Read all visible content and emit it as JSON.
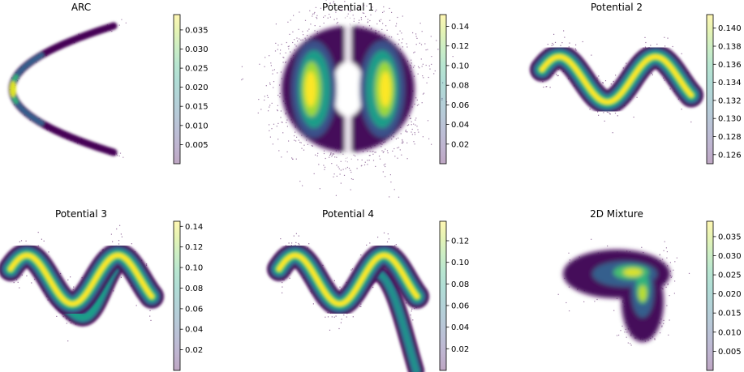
{
  "chart_data": [
    {
      "type": "heatmap",
      "title": "ARC",
      "shape": "arc",
      "colorbar": {
        "range": [
          0.0,
          0.039
        ],
        "ticks": [
          0.005,
          0.01,
          0.015,
          0.02,
          0.025,
          0.03,
          0.035
        ],
        "tick_labels": [
          "0.005",
          "0.010",
          "0.015",
          "0.020",
          "0.025",
          "0.030",
          "0.035"
        ]
      },
      "axes_visible": false
    },
    {
      "type": "heatmap",
      "title": "Potential 1",
      "shape": "potential1",
      "colorbar": {
        "range": [
          0.0,
          0.152
        ],
        "ticks": [
          0.02,
          0.04,
          0.06,
          0.08,
          0.1,
          0.12,
          0.14
        ],
        "tick_labels": [
          "0.02",
          "0.04",
          "0.06",
          "0.08",
          "0.10",
          "0.12",
          "0.14"
        ]
      },
      "axes_visible": false
    },
    {
      "type": "heatmap",
      "title": "Potential 2",
      "shape": "potential2",
      "colorbar": {
        "range": [
          0.125,
          0.1415
        ],
        "ticks": [
          0.126,
          0.128,
          0.13,
          0.132,
          0.134,
          0.136,
          0.138,
          0.14
        ],
        "tick_labels": [
          "0.126",
          "0.128",
          "0.130",
          "0.132",
          "0.134",
          "0.136",
          "0.138",
          "0.140"
        ]
      },
      "axes_visible": false
    },
    {
      "type": "heatmap",
      "title": "Potential 3",
      "shape": "potential3",
      "colorbar": {
        "range": [
          0.0,
          0.145
        ],
        "ticks": [
          0.02,
          0.04,
          0.06,
          0.08,
          0.1,
          0.12,
          0.14
        ],
        "tick_labels": [
          "0.02",
          "0.04",
          "0.06",
          "0.08",
          "0.10",
          "0.12",
          "0.14"
        ]
      },
      "axes_visible": false
    },
    {
      "type": "heatmap",
      "title": "Potential 4",
      "shape": "potential4",
      "colorbar": {
        "range": [
          0.0,
          0.138
        ],
        "ticks": [
          0.02,
          0.04,
          0.06,
          0.08,
          0.1,
          0.12
        ],
        "tick_labels": [
          "0.02",
          "0.04",
          "0.06",
          "0.08",
          "0.10",
          "0.12"
        ]
      },
      "axes_visible": false
    },
    {
      "type": "heatmap",
      "title": "2D Mixture",
      "shape": "mixture",
      "colorbar": {
        "range": [
          0.0,
          0.039
        ],
        "ticks": [
          0.005,
          0.01,
          0.015,
          0.02,
          0.025,
          0.03,
          0.035
        ],
        "tick_labels": [
          "0.005",
          "0.010",
          "0.015",
          "0.020",
          "0.025",
          "0.030",
          "0.035"
        ]
      },
      "axes_visible": false
    }
  ],
  "colormap": {
    "name": "viridis",
    "stops": [
      "#440154",
      "#482878",
      "#3e4989",
      "#31688e",
      "#26828e",
      "#1f9e89",
      "#35b779",
      "#6ece58",
      "#b5de2b",
      "#fde725"
    ]
  }
}
